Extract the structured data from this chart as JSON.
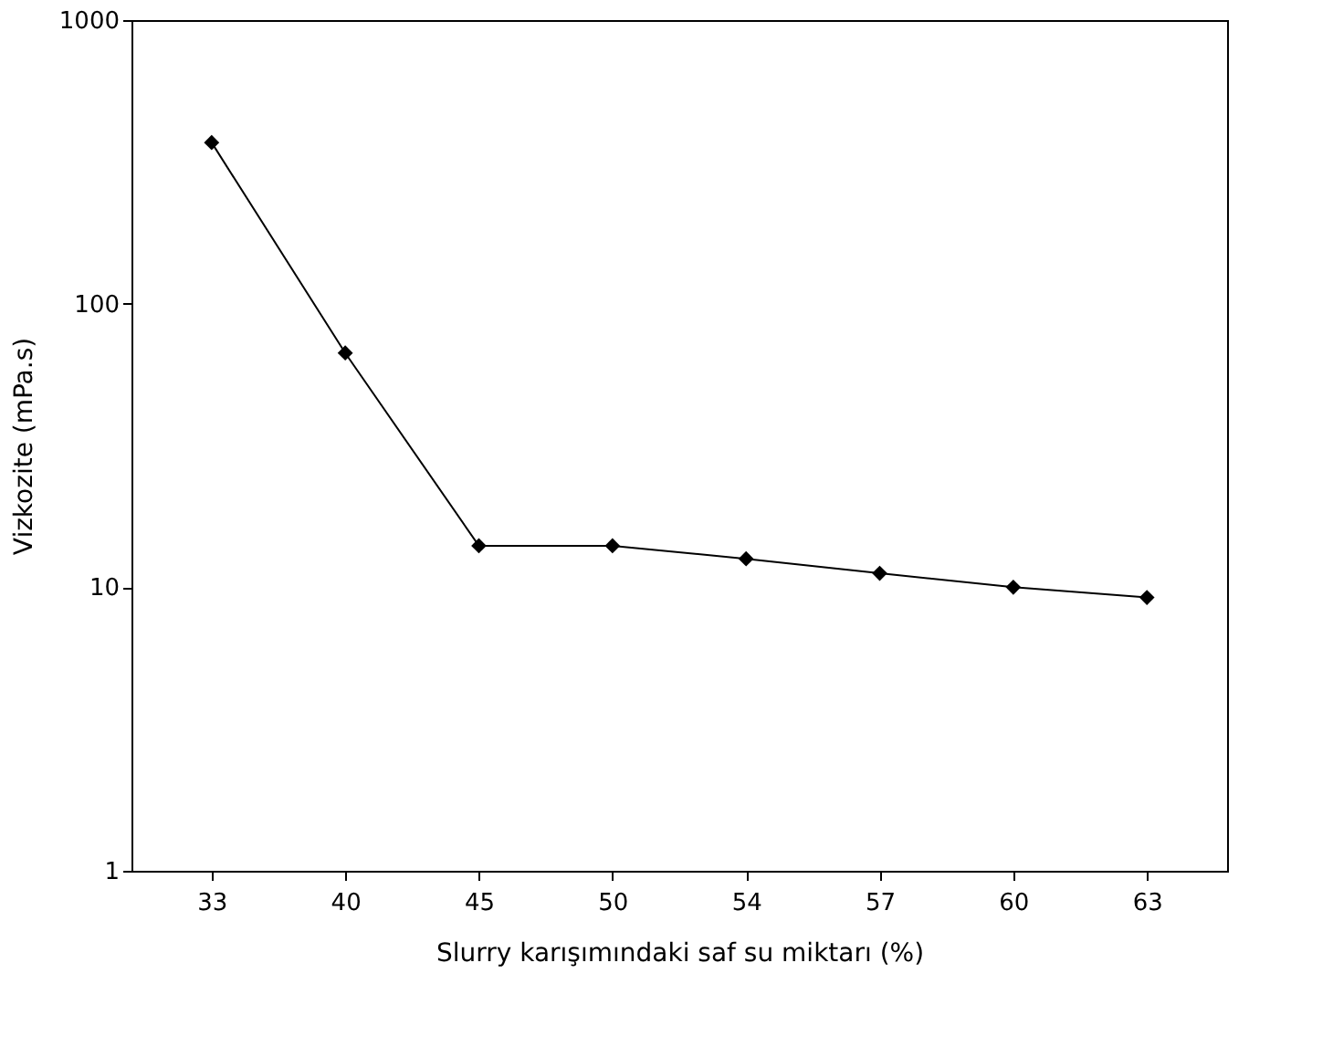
{
  "chart_data": {
    "type": "line",
    "xlabel": "Slurry karışımındaki saf su miktarı (%)",
    "ylabel": "Vizkozite (mPa.s)",
    "categories": [
      "33",
      "40",
      "45",
      "50",
      "54",
      "57",
      "60",
      "63"
    ],
    "series": [
      {
        "color": "#000000",
        "values": [
          370,
          67,
          14,
          14,
          12.6,
          11.2,
          10,
          9.2
        ]
      }
    ],
    "ylim": [
      1,
      1000
    ],
    "yticks": [
      1,
      10,
      100,
      1000
    ],
    "log": true,
    "grid": false,
    "marker": "diamond",
    "line_style": "solid"
  }
}
